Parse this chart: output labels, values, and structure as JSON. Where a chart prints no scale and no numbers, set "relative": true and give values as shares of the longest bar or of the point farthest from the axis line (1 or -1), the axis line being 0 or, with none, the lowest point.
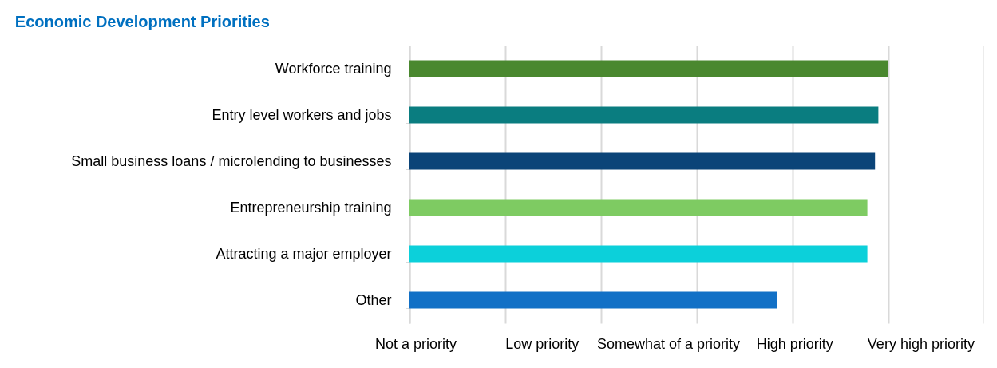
{
  "chart_data": {
    "type": "bar",
    "orientation": "horizontal",
    "relative": true,
    "title": "Economic Development Priorities",
    "categories": [
      "Workforce training",
      "Entry level workers and jobs",
      "Small business loans / microlending to businesses",
      "Entrepreneurship training",
      "Attracting a major employer",
      "Other"
    ],
    "values": [
      1,
      0.979,
      0.972,
      0.956,
      0.956,
      0.768
    ],
    "colors": [
      "#4a882f",
      "#0a7d80",
      "#0b4478",
      "#7ecb62",
      "#0cd0da",
      "#1170c6"
    ],
    "annotations": [
      "Not a priority",
      "Low priority",
      "Somewhat of a priority",
      "High priority",
      "Very high priority"
    ],
    "grid": "x"
  }
}
